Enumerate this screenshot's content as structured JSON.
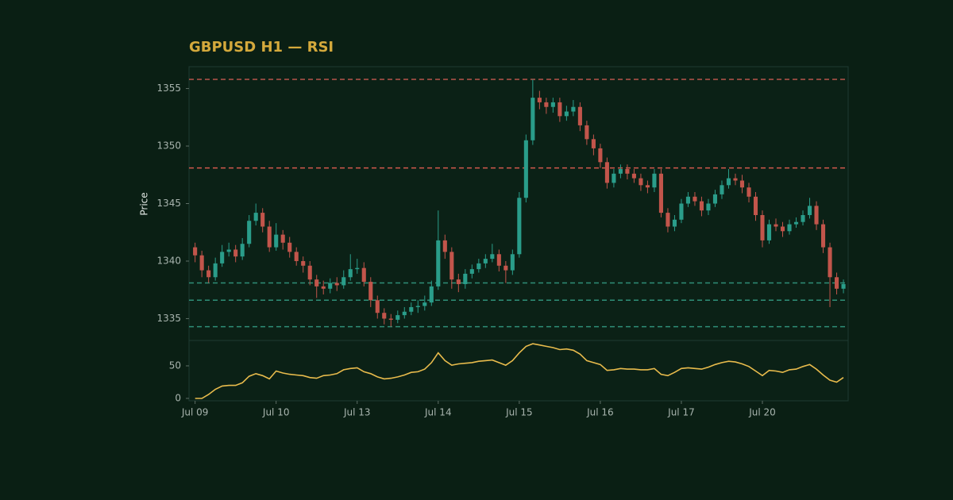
{
  "chart_data": {
    "type": "candlestick",
    "title": "GBPUSD H1 — RSI",
    "y_label": "Price",
    "xlim": [
      -0.9,
      96.7
    ],
    "xticks": [
      {
        "value": 0,
        "label": "Jul 09"
      },
      {
        "value": 12,
        "label": "Jul 10"
      },
      {
        "value": 24,
        "label": "Jul 13"
      },
      {
        "value": 36,
        "label": "Jul 14"
      },
      {
        "value": 48,
        "label": "Jul 15"
      },
      {
        "value": 60,
        "label": "Jul 16"
      },
      {
        "value": 72,
        "label": "Jul 17"
      },
      {
        "value": 84,
        "label": "Jul 20"
      }
    ],
    "ylim": [
      1333.1,
      1356.9
    ],
    "yticks": [
      1335,
      1340,
      1345,
      1350,
      1355
    ],
    "up_color": "#2a9d8a",
    "down_color": "#c2554b",
    "open": [
      1341.2,
      1340.5,
      1339.2,
      1338.6,
      1339.8,
      1340.8,
      1341.0,
      1340.4,
      1341.5,
      1343.5,
      1344.2,
      1343.0,
      1341.2,
      1342.3,
      1341.6,
      1340.8,
      1340.0,
      1339.6,
      1338.4,
      1337.8,
      1337.6,
      1338.1,
      1337.9,
      1338.6,
      1339.3,
      1339.4,
      1338.2,
      1336.6,
      1335.5,
      1335.0,
      1334.9,
      1335.3,
      1335.6,
      1336.0,
      1336.1,
      1336.4,
      1337.8,
      1341.8,
      1340.8,
      1338.4,
      1338.0,
      1338.9,
      1339.3,
      1339.8,
      1340.2,
      1340.6,
      1339.6,
      1339.2,
      1340.6,
      1345.5,
      1350.5,
      1354.2,
      1353.8,
      1353.4,
      1353.8,
      1352.6,
      1353.0,
      1353.4,
      1351.8,
      1350.6,
      1349.8,
      1348.6,
      1346.8,
      1347.6,
      1348.0,
      1347.6,
      1347.2,
      1346.6,
      1346.4,
      1347.6,
      1344.2,
      1343.0,
      1343.6,
      1345.0,
      1345.6,
      1345.2,
      1344.4,
      1345.0,
      1345.8,
      1346.6,
      1347.2,
      1347.0,
      1346.4,
      1345.6,
      1344.0,
      1341.8,
      1343.2,
      1343.0,
      1342.6,
      1343.2,
      1343.4,
      1344.0,
      1344.8,
      1343.2,
      1341.2,
      1338.6,
      1337.6
    ],
    "high": [
      1341.6,
      1340.9,
      1339.6,
      1340.3,
      1341.4,
      1341.6,
      1341.4,
      1342.0,
      1344.0,
      1345.0,
      1344.6,
      1343.5,
      1343.3,
      1342.7,
      1342.1,
      1341.2,
      1340.4,
      1340.0,
      1338.8,
      1338.3,
      1338.5,
      1338.6,
      1339.2,
      1340.6,
      1340.2,
      1339.9,
      1338.6,
      1337.0,
      1335.9,
      1335.4,
      1335.7,
      1336.0,
      1336.4,
      1336.6,
      1337.0,
      1338.3,
      1344.4,
      1342.3,
      1341.2,
      1338.9,
      1339.3,
      1339.7,
      1340.2,
      1340.6,
      1341.5,
      1341.0,
      1340.0,
      1341.0,
      1346.0,
      1351.0,
      1355.8,
      1354.8,
      1354.2,
      1354.2,
      1354.2,
      1353.5,
      1354.0,
      1353.8,
      1352.2,
      1351.0,
      1350.2,
      1349.0,
      1348.0,
      1348.4,
      1348.4,
      1348.0,
      1347.6,
      1347.0,
      1348.0,
      1348.0,
      1344.6,
      1344.0,
      1345.4,
      1346.0,
      1346.0,
      1345.6,
      1345.4,
      1346.2,
      1347.0,
      1348.0,
      1347.6,
      1347.5,
      1346.8,
      1346.0,
      1344.4,
      1343.6,
      1343.7,
      1343.4,
      1343.6,
      1343.8,
      1344.4,
      1345.5,
      1345.2,
      1343.6,
      1341.6,
      1339.0,
      1338.4
    ],
    "low": [
      1339.9,
      1338.6,
      1338.1,
      1338.3,
      1339.5,
      1340.4,
      1339.9,
      1340.1,
      1341.2,
      1343.1,
      1342.5,
      1340.8,
      1340.9,
      1341.0,
      1340.3,
      1339.6,
      1339.0,
      1337.9,
      1336.8,
      1337.1,
      1337.2,
      1337.4,
      1337.6,
      1338.3,
      1338.9,
      1337.8,
      1336.0,
      1335.0,
      1334.5,
      1334.3,
      1334.6,
      1335.0,
      1335.3,
      1335.5,
      1335.7,
      1336.1,
      1337.5,
      1340.2,
      1337.6,
      1337.3,
      1337.6,
      1338.5,
      1339.0,
      1339.4,
      1339.9,
      1339.1,
      1338.1,
      1338.8,
      1340.3,
      1345.1,
      1350.1,
      1353.2,
      1352.8,
      1352.9,
      1352.1,
      1352.2,
      1352.6,
      1351.3,
      1350.1,
      1349.2,
      1348.1,
      1346.3,
      1346.4,
      1347.2,
      1347.1,
      1346.8,
      1346.1,
      1345.9,
      1346.0,
      1343.8,
      1342.5,
      1342.6,
      1343.3,
      1344.7,
      1344.8,
      1343.9,
      1344.0,
      1344.7,
      1345.4,
      1346.3,
      1346.6,
      1345.9,
      1345.1,
      1343.5,
      1341.2,
      1341.5,
      1342.6,
      1342.1,
      1342.3,
      1342.9,
      1343.1,
      1343.7,
      1342.7,
      1340.7,
      1336.0,
      1337.1,
      1337.2
    ],
    "close": [
      1340.5,
      1339.2,
      1338.6,
      1339.8,
      1340.8,
      1341.0,
      1340.4,
      1341.5,
      1343.5,
      1344.2,
      1343.0,
      1341.2,
      1342.3,
      1341.6,
      1340.8,
      1340.0,
      1339.6,
      1338.4,
      1337.8,
      1337.6,
      1338.1,
      1337.9,
      1338.6,
      1339.3,
      1339.4,
      1338.2,
      1336.6,
      1335.5,
      1335.0,
      1334.9,
      1335.3,
      1335.6,
      1336.0,
      1336.1,
      1336.4,
      1337.8,
      1341.8,
      1340.8,
      1338.4,
      1338.0,
      1338.9,
      1339.3,
      1339.8,
      1340.2,
      1340.6,
      1339.6,
      1339.2,
      1340.6,
      1345.5,
      1350.5,
      1354.2,
      1353.8,
      1353.4,
      1353.8,
      1352.6,
      1353.0,
      1353.4,
      1351.8,
      1350.6,
      1349.8,
      1348.6,
      1346.8,
      1347.6,
      1348.0,
      1347.6,
      1347.2,
      1346.6,
      1346.4,
      1347.6,
      1344.2,
      1343.0,
      1343.6,
      1345.0,
      1345.6,
      1345.2,
      1344.4,
      1345.0,
      1345.8,
      1346.6,
      1347.2,
      1347.0,
      1346.4,
      1345.6,
      1344.0,
      1341.8,
      1343.2,
      1343.0,
      1342.6,
      1343.2,
      1343.4,
      1344.0,
      1344.8,
      1343.2,
      1341.2,
      1338.6,
      1337.6,
      1338.0
    ],
    "levels": [
      {
        "value": 1355.8,
        "color": "#b8564b"
      },
      {
        "value": 1348.1,
        "color": "#d2584e"
      },
      {
        "value": 1338.1,
        "color": "#2f8f78"
      },
      {
        "value": 1336.6,
        "color": "#2f8f78"
      },
      {
        "value": 1334.3,
        "color": "#2f8f78"
      }
    ],
    "rsi": {
      "color": "#e8bb4c",
      "ylim": [
        -3.7,
        89
      ],
      "yticks": [
        0,
        50
      ],
      "values": [
        0,
        0,
        6,
        14,
        19,
        20,
        20,
        24,
        34,
        38,
        35,
        30,
        42,
        39,
        37,
        36,
        35,
        32,
        31,
        35,
        36,
        38,
        44,
        46,
        47,
        41,
        38,
        33,
        30,
        31,
        33,
        36,
        40,
        41,
        45,
        55,
        70,
        58,
        51,
        53,
        54,
        55,
        57,
        58,
        59,
        55,
        51,
        58,
        70,
        80,
        84,
        82,
        80,
        78,
        75,
        76,
        74,
        68,
        58,
        55,
        52,
        43,
        44,
        46,
        45,
        45,
        44,
        44,
        46,
        37,
        35,
        40,
        46,
        47,
        46,
        45,
        48,
        52,
        55,
        57,
        56,
        53,
        49,
        42,
        35,
        43,
        42,
        40,
        44,
        45,
        49,
        52,
        45,
        36,
        28,
        25,
        32
      ]
    }
  }
}
